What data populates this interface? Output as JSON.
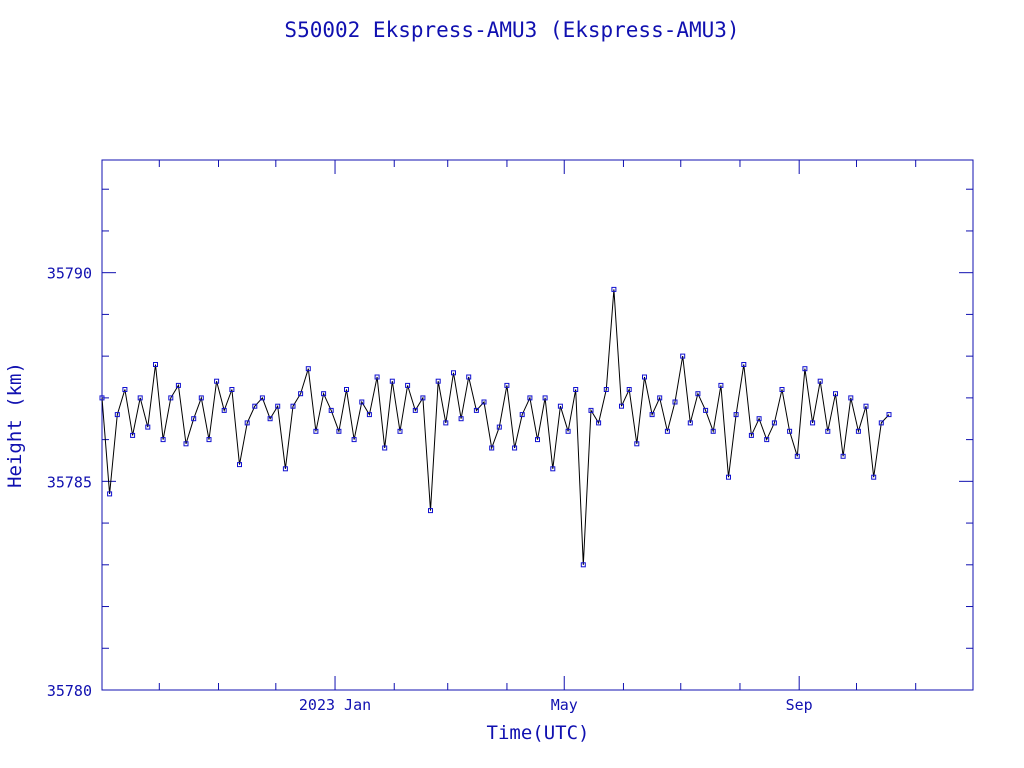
{
  "chart_data": {
    "type": "line",
    "title": "S50002 Ekspress-AMU3  (Ekspress-AMU3)",
    "xlabel": "Time(UTC)",
    "ylabel": "Height (km)",
    "ylim": [
      35780,
      35792.7
    ],
    "xlim": [
      "2022-09-01",
      "2023-12-01"
    ],
    "y_ticks": [
      35780,
      35785,
      35790
    ],
    "x_ticks": [
      {
        "date": "2023-01-01",
        "label": "2023 Jan"
      },
      {
        "date": "2023-05-01",
        "label": "May"
      },
      {
        "date": "2023-09-01",
        "label": "Sep"
      }
    ],
    "grid": false,
    "colors": {
      "line": "#000000",
      "marker": "#1010d0",
      "text": "#1010b0",
      "frame": "#1010b0"
    },
    "series": [
      {
        "x": [
          "2022-09-01",
          "2022-09-05",
          "2022-09-09",
          "2022-09-13",
          "2022-09-17",
          "2022-09-21",
          "2022-09-25",
          "2022-09-29",
          "2022-10-03",
          "2022-10-07",
          "2022-10-11",
          "2022-10-15",
          "2022-10-19",
          "2022-10-23",
          "2022-10-27",
          "2022-10-31",
          "2022-11-04",
          "2022-11-08",
          "2022-11-12",
          "2022-11-16",
          "2022-11-20",
          "2022-11-24",
          "2022-11-28",
          "2022-12-02",
          "2022-12-06",
          "2022-12-10",
          "2022-12-14",
          "2022-12-18",
          "2022-12-22",
          "2022-12-26",
          "2022-12-30",
          "2023-01-03",
          "2023-01-07",
          "2023-01-11",
          "2023-01-15",
          "2023-01-19",
          "2023-01-23",
          "2023-01-27",
          "2023-01-31",
          "2023-02-04",
          "2023-02-08",
          "2023-02-12",
          "2023-02-16",
          "2023-02-20",
          "2023-02-24",
          "2023-02-28",
          "2023-03-04",
          "2023-03-08",
          "2023-03-12",
          "2023-03-16",
          "2023-03-20",
          "2023-03-24",
          "2023-03-28",
          "2023-04-01",
          "2023-04-05",
          "2023-04-09",
          "2023-04-13",
          "2023-04-17",
          "2023-04-21",
          "2023-04-25",
          "2023-04-29",
          "2023-05-03",
          "2023-05-07",
          "2023-05-11",
          "2023-05-15",
          "2023-05-19",
          "2023-05-23",
          "2023-05-27",
          "2023-05-31",
          "2023-06-04",
          "2023-06-08",
          "2023-06-12",
          "2023-06-16",
          "2023-06-20",
          "2023-06-24",
          "2023-06-28",
          "2023-07-02",
          "2023-07-06",
          "2023-07-10",
          "2023-07-14",
          "2023-07-18",
          "2023-07-22",
          "2023-07-26",
          "2023-07-30",
          "2023-08-03",
          "2023-08-07",
          "2023-08-11",
          "2023-08-15",
          "2023-08-19",
          "2023-08-23",
          "2023-08-27",
          "2023-08-31",
          "2023-09-04",
          "2023-09-08",
          "2023-09-12",
          "2023-09-16",
          "2023-09-20",
          "2023-09-24",
          "2023-09-28",
          "2023-10-02",
          "2023-10-06",
          "2023-10-10",
          "2023-10-14",
          "2023-10-18"
        ],
        "y": [
          35787.0,
          35784.7,
          35786.6,
          35787.2,
          35786.1,
          35787.0,
          35786.3,
          35787.8,
          35786.0,
          35787.0,
          35787.3,
          35785.9,
          35786.5,
          35787.0,
          35786.0,
          35787.4,
          35786.7,
          35787.2,
          35785.4,
          35786.4,
          35786.8,
          35787.0,
          35786.5,
          35786.8,
          35785.3,
          35786.8,
          35787.1,
          35787.7,
          35786.2,
          35787.1,
          35786.7,
          35786.2,
          35787.2,
          35786.0,
          35786.9,
          35786.6,
          35787.5,
          35785.8,
          35787.4,
          35786.2,
          35787.3,
          35786.7,
          35787.0,
          35784.3,
          35787.4,
          35786.4,
          35787.6,
          35786.5,
          35787.5,
          35786.7,
          35786.9,
          35785.8,
          35786.3,
          35787.3,
          35785.8,
          35786.6,
          35787.0,
          35786.0,
          35787.0,
          35785.3,
          35786.8,
          35786.2,
          35787.2,
          35783.0,
          35786.7,
          35786.4,
          35787.2,
          35789.6,
          35786.8,
          35787.2,
          35785.9,
          35787.5,
          35786.6,
          35787.0,
          35786.2,
          35786.9,
          35788.0,
          35786.4,
          35787.1,
          35786.7,
          35786.2,
          35787.3,
          35785.1,
          35786.6,
          35787.8,
          35786.1,
          35786.5,
          35786.0,
          35786.4,
          35787.2,
          35786.2,
          35785.6,
          35787.7,
          35786.4,
          35787.4,
          35786.2,
          35787.1,
          35785.6,
          35787.0,
          35786.2,
          35786.8,
          35785.1,
          35786.4,
          35786.6
        ]
      }
    ]
  }
}
